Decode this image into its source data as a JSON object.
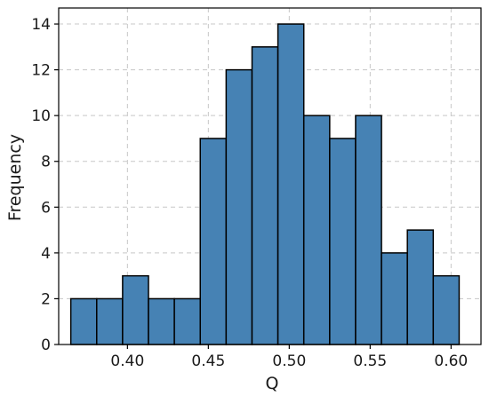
{
  "chart_data": {
    "type": "bar",
    "subtype": "histogram",
    "xlabel": "Q",
    "ylabel": "Frequency",
    "xlim": [
      0.3575,
      0.6185
    ],
    "ylim": [
      0,
      14.7
    ],
    "xticks": [
      0.4,
      0.45,
      0.5,
      0.55,
      0.6
    ],
    "xtick_labels": [
      "0.40",
      "0.45",
      "0.50",
      "0.55",
      "0.60"
    ],
    "yticks": [
      0,
      2,
      4,
      6,
      8,
      10,
      12,
      14
    ],
    "ytick_labels": [
      "0",
      "2",
      "4",
      "6",
      "8",
      "10",
      "12",
      "14"
    ],
    "grid": true,
    "bins": [
      {
        "x0": 0.365,
        "x1": 0.381,
        "count": 2
      },
      {
        "x0": 0.381,
        "x1": 0.397,
        "count": 2
      },
      {
        "x0": 0.397,
        "x1": 0.413,
        "count": 3
      },
      {
        "x0": 0.413,
        "x1": 0.429,
        "count": 2
      },
      {
        "x0": 0.429,
        "x1": 0.445,
        "count": 2
      },
      {
        "x0": 0.445,
        "x1": 0.461,
        "count": 9
      },
      {
        "x0": 0.461,
        "x1": 0.477,
        "count": 12
      },
      {
        "x0": 0.477,
        "x1": 0.493,
        "count": 13
      },
      {
        "x0": 0.493,
        "x1": 0.509,
        "count": 14
      },
      {
        "x0": 0.509,
        "x1": 0.525,
        "count": 10
      },
      {
        "x0": 0.525,
        "x1": 0.541,
        "count": 9
      },
      {
        "x0": 0.541,
        "x1": 0.557,
        "count": 10
      },
      {
        "x0": 0.557,
        "x1": 0.573,
        "count": 4
      },
      {
        "x0": 0.573,
        "x1": 0.589,
        "count": 5
      },
      {
        "x0": 0.589,
        "x1": 0.605,
        "count": 3
      }
    ],
    "colors": {
      "bar_fill": "#4682b4",
      "bar_edge": "#000000",
      "grid": "#c8c8c8"
    }
  }
}
